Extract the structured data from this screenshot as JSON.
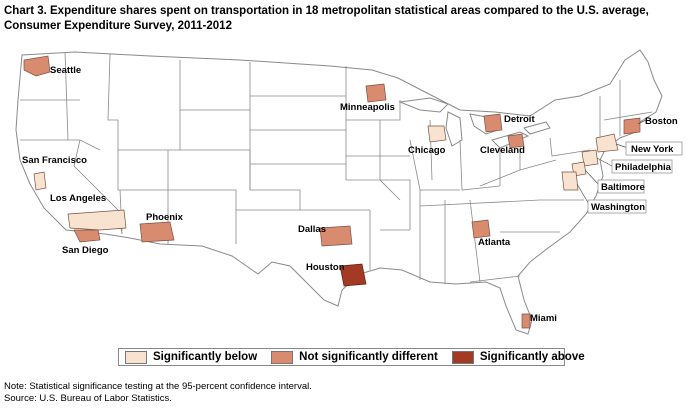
{
  "title": "Chart 3. Expenditure shares spent on transportation in 18 metropolitan statistical areas compared to the U.S. average, Consumer Expenditure Survey, 2011-2012",
  "colors": {
    "below": "#f7e3cf",
    "not_different": "#d98b70",
    "above": "#a43a24",
    "boundary": "#8a8a8a",
    "land": "#ffffff"
  },
  "legend": [
    {
      "key": "below",
      "label": "Significantly below"
    },
    {
      "key": "not_different",
      "label": "Not significantly different"
    },
    {
      "key": "above",
      "label": "Significantly above"
    }
  ],
  "cities": [
    {
      "name": "Seattle",
      "category": "not_different"
    },
    {
      "name": "San Francisco",
      "category": "below"
    },
    {
      "name": "Los Angeles",
      "category": "below"
    },
    {
      "name": "San Diego",
      "category": "not_different"
    },
    {
      "name": "Phoenix",
      "category": "not_different"
    },
    {
      "name": "Minneapolis",
      "category": "not_different"
    },
    {
      "name": "Chicago",
      "category": "below"
    },
    {
      "name": "Detroit",
      "category": "not_different"
    },
    {
      "name": "Cleveland",
      "category": "not_different"
    },
    {
      "name": "Dallas",
      "category": "not_different"
    },
    {
      "name": "Houston",
      "category": "above"
    },
    {
      "name": "Atlanta",
      "category": "not_different"
    },
    {
      "name": "Miami",
      "category": "not_different"
    },
    {
      "name": "Boston",
      "category": "not_different"
    },
    {
      "name": "New York",
      "category": "below"
    },
    {
      "name": "Philadelphia",
      "category": "below"
    },
    {
      "name": "Baltimore",
      "category": "below"
    },
    {
      "name": "Washington",
      "category": "below"
    }
  ],
  "footer": {
    "note": "Note: Statistical significance testing at the 95-percent confidence interval.",
    "source": "Source: U.S. Bureau of Labor Statistics."
  }
}
